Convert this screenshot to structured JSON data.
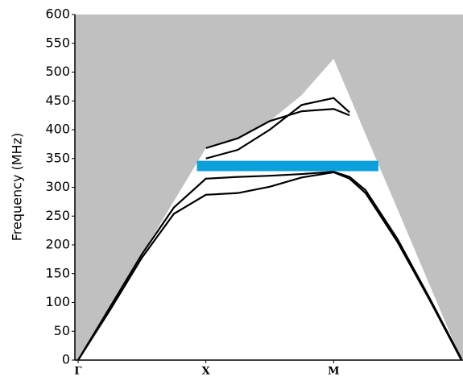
{
  "chart_data": {
    "type": "line",
    "ylabel": "Frequency (MHz)",
    "x": [
      0,
      0.25,
      0.5,
      0.75,
      1,
      1.25,
      1.5,
      1.75,
      2,
      2.125,
      2.25,
      2.5,
      2.75,
      3
    ],
    "xlim": [
      0,
      3
    ],
    "xticks": [
      {
        "value": 0,
        "label": "Γ"
      },
      {
        "value": 1,
        "label": "X"
      },
      {
        "value": 2,
        "label": "M"
      }
    ],
    "ylim": [
      0,
      600
    ],
    "yticks": [
      0,
      50,
      100,
      150,
      200,
      250,
      300,
      350,
      400,
      450,
      500,
      550,
      600
    ],
    "background_color": "#c0c0c0",
    "white_region": {
      "color": "#ffffff",
      "values": [
        0,
        92,
        184,
        276,
        368,
        385,
        415,
        460,
        523,
        458,
        392,
        262,
        131,
        0
      ]
    },
    "band_gap": {
      "color": "#0b9fdc",
      "xlim": [
        0.93,
        2.35
      ],
      "ylim": [
        328,
        346
      ]
    },
    "series": [
      {
        "color": "#000000",
        "values": [
          0,
          87,
          178,
          254,
          287,
          290,
          301,
          317,
          326,
          315,
          290,
          205,
          105,
          0
        ]
      },
      {
        "color": "#000000",
        "values": [
          0,
          92,
          184,
          265,
          315,
          318,
          320,
          323,
          327,
          318,
          295,
          210,
          108,
          2
        ]
      },
      {
        "color": "#000000",
        "values": [
          null,
          null,
          null,
          null,
          350,
          365,
          400,
          443,
          455,
          430,
          null,
          null,
          null,
          null
        ]
      },
      {
        "color": "#000000",
        "values": [
          null,
          null,
          null,
          null,
          368,
          385,
          415,
          432,
          436,
          425,
          null,
          null,
          null,
          null
        ]
      }
    ]
  }
}
